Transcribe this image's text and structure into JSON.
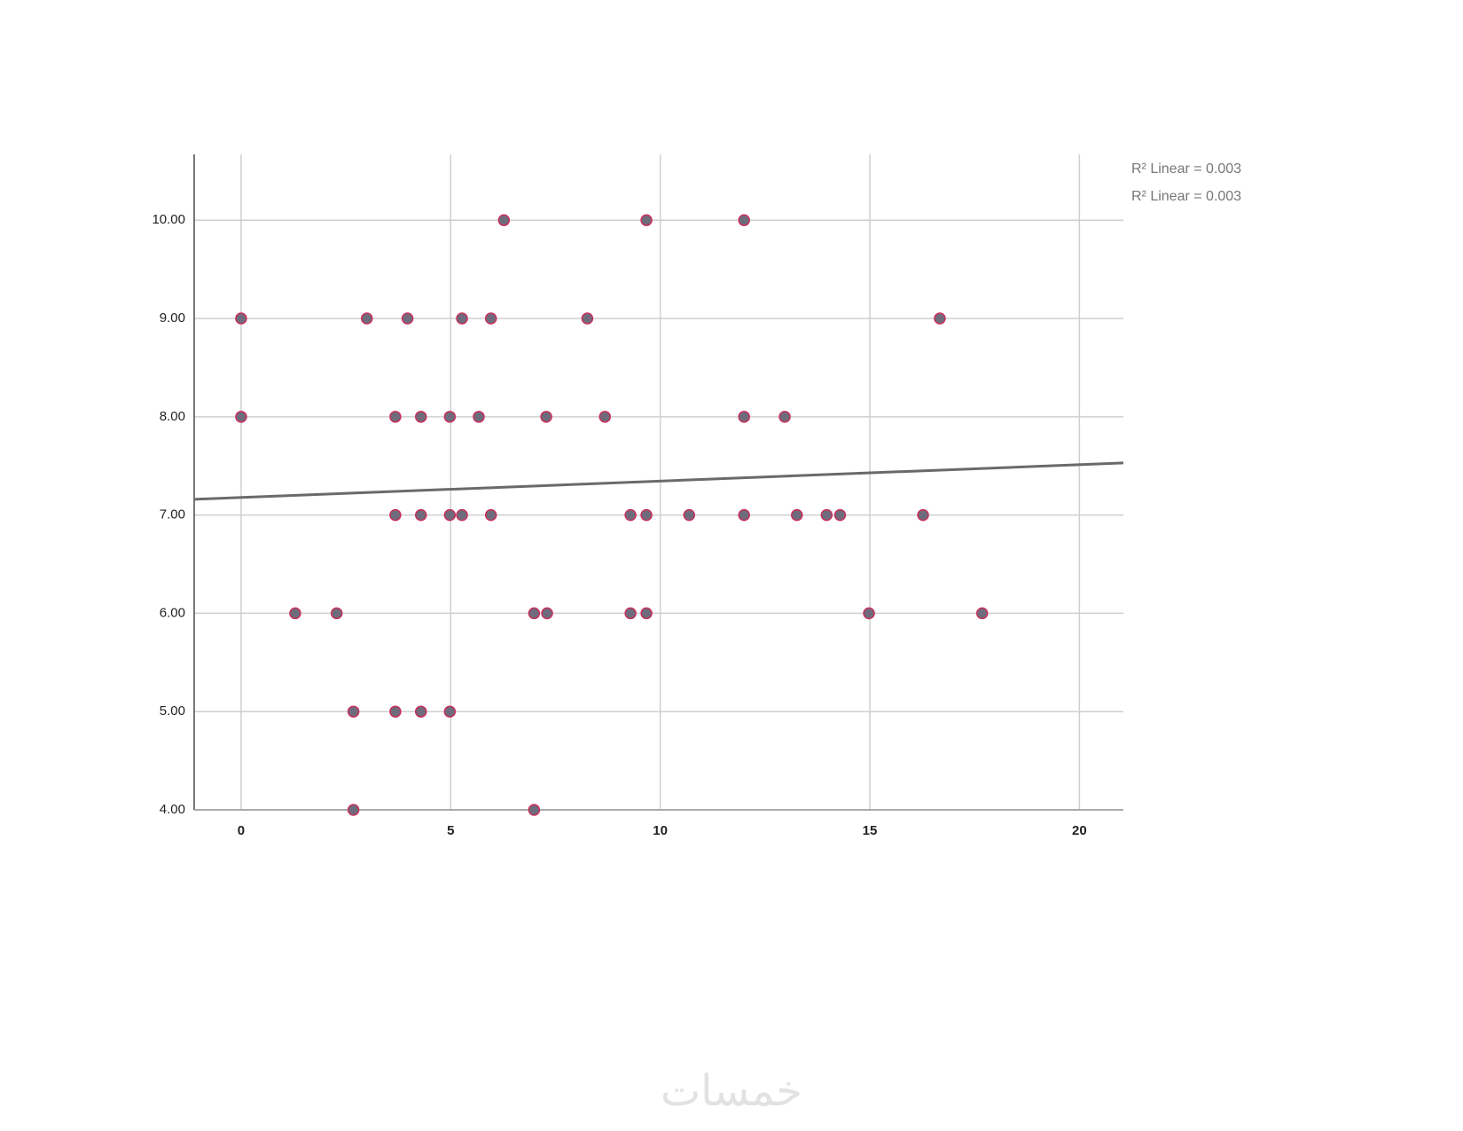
{
  "chart_data": {
    "type": "scatter",
    "x": [
      6.27,
      9.67,
      12.0,
      0,
      3.0,
      3.97,
      5.27,
      5.96,
      8.26,
      16.67,
      0,
      3.68,
      4.29,
      4.98,
      5.67,
      7.28,
      8.68,
      12.0,
      12.97,
      3.68,
      4.29,
      4.98,
      5.27,
      5.96,
      9.29,
      9.67,
      10.69,
      12.0,
      13.26,
      13.97,
      14.29,
      16.27,
      1.29,
      2.28,
      6.99,
      7.3,
      9.29,
      9.67,
      14.98,
      17.68,
      2.68,
      3.68,
      4.29,
      4.98,
      2.68,
      6.99
    ],
    "values": [
      10,
      10,
      10,
      9,
      9,
      9,
      9,
      9,
      9,
      9,
      8,
      8,
      8,
      8,
      8,
      8,
      8,
      8,
      8,
      7,
      7,
      7,
      7,
      7,
      7,
      7,
      7,
      7,
      7,
      7,
      7,
      7,
      6,
      6,
      6,
      6,
      6,
      6,
      6,
      6,
      5,
      5,
      5,
      5,
      4,
      4
    ],
    "color": "#6e6c7c",
    "edge_color": "#c8305c",
    "fit_line": {
      "x": [
        -1.12,
        21.05
      ],
      "y": [
        7.16,
        7.53
      ],
      "color": "#6a6a6a"
    },
    "legend_labels": [
      "R² Linear = 0.003",
      "R² Linear = 0.003"
    ],
    "xlim": [
      -1.12,
      21.05
    ],
    "xticks": [
      0,
      5,
      10,
      15,
      20
    ],
    "ylim": [
      4,
      10.67
    ],
    "yticks": [
      {
        "value": 4,
        "label": "4.00"
      },
      {
        "value": 5,
        "label": "5.00"
      },
      {
        "value": 6,
        "label": "6.00"
      },
      {
        "value": 7,
        "label": "7.00"
      },
      {
        "value": 8,
        "label": "8.00"
      },
      {
        "value": 9,
        "label": "9.00"
      },
      {
        "value": 10,
        "label": "10.00"
      }
    ],
    "grid": true
  },
  "watermark": "خمسات"
}
